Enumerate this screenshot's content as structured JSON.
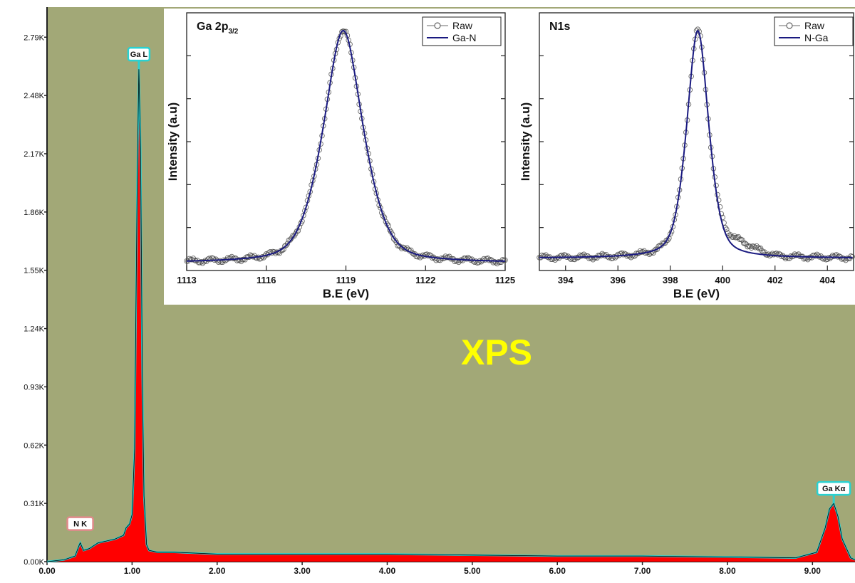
{
  "overlay_label": "XPS",
  "colors": {
    "plot_bg": "#a2a877",
    "eds_fill": "#ff0000",
    "eds_outline": "#2ad1d1",
    "overlay_text": "#ffff00",
    "fit_line": "#1a1a80",
    "raw_marker": "#444444"
  },
  "chart_data": [
    {
      "id": "eds",
      "type": "area",
      "xlim": [
        0,
        9.5
      ],
      "ylim": [
        0,
        2.95
      ],
      "x_ticks": [
        0,
        1,
        2,
        3,
        4,
        5,
        6,
        7,
        8,
        9
      ],
      "x_tick_labels": [
        "0.00",
        "1.00",
        "2.00",
        "3.00",
        "4.00",
        "5.00",
        "6.00",
        "7.00",
        "8.00",
        "9.00"
      ],
      "y_ticks": [
        0,
        0.31,
        0.62,
        0.93,
        1.24,
        1.55,
        1.86,
        2.17,
        2.48,
        2.79
      ],
      "y_tick_labels": [
        "0.00K",
        "0.31K",
        "0.62K",
        "0.93K",
        "1.24K",
        "1.55K",
        "1.86K",
        "2.17K",
        "2.48K",
        "2.79K"
      ],
      "x": [
        0.0,
        0.2,
        0.33,
        0.38,
        0.39,
        0.43,
        0.5,
        0.6,
        0.7,
        0.8,
        0.9,
        0.93,
        0.97,
        1.0,
        1.03,
        1.06,
        1.08,
        1.1,
        1.12,
        1.14,
        1.17,
        1.2,
        1.3,
        1.5,
        2.0,
        3.0,
        4.0,
        5.0,
        6.0,
        7.0,
        8.0,
        8.8,
        9.05,
        9.15,
        9.2,
        9.25,
        9.3,
        9.35,
        9.45,
        9.5
      ],
      "y": [
        0.0,
        0.01,
        0.03,
        0.09,
        0.1,
        0.06,
        0.07,
        0.1,
        0.11,
        0.12,
        0.14,
        0.18,
        0.2,
        0.25,
        0.6,
        2.0,
        2.62,
        2.2,
        1.0,
        0.35,
        0.09,
        0.06,
        0.05,
        0.05,
        0.04,
        0.04,
        0.04,
        0.035,
        0.03,
        0.03,
        0.025,
        0.02,
        0.05,
        0.18,
        0.28,
        0.31,
        0.24,
        0.12,
        0.02,
        0.01
      ],
      "peak_labels": [
        {
          "text": "N  K",
          "x": 0.39
        },
        {
          "text": "Ga L",
          "x": 1.08
        },
        {
          "text": "Ga Kα",
          "x": 9.25
        }
      ]
    },
    {
      "id": "ga2p",
      "type": "scatter",
      "title": "Ga 2p",
      "title_sub": "3/2",
      "xlabel": "B.E (eV)",
      "ylabel": "Intensity (a.u)",
      "xlim": [
        1113,
        1125
      ],
      "x_ticks": [
        1113,
        1116,
        1119,
        1122,
        1125
      ],
      "legend": [
        "Raw",
        "Ga-N"
      ],
      "peak": {
        "center": 118.9,
        "sigma": 0.85,
        "gamma": 0.75,
        "baseline": 0.02,
        "amp": 0.98
      },
      "points_start": 1113,
      "points_end": 1125,
      "points_step": 0.05
    },
    {
      "id": "n1s",
      "type": "scatter",
      "title": "N1s",
      "xlabel": "B.E (eV)",
      "ylabel": "Intensity (a.u)",
      "xlim": [
        393,
        405
      ],
      "x_ticks": [
        394,
        396,
        398,
        400,
        402,
        404
      ],
      "legend": [
        "Raw",
        "N-Ga"
      ],
      "peak": {
        "center": 399.05,
        "sigma": 0.45,
        "gamma": 0.45,
        "baseline": 0.04,
        "amp": 0.96
      },
      "points_start": 393,
      "points_end": 405,
      "points_step": 0.05
    }
  ]
}
